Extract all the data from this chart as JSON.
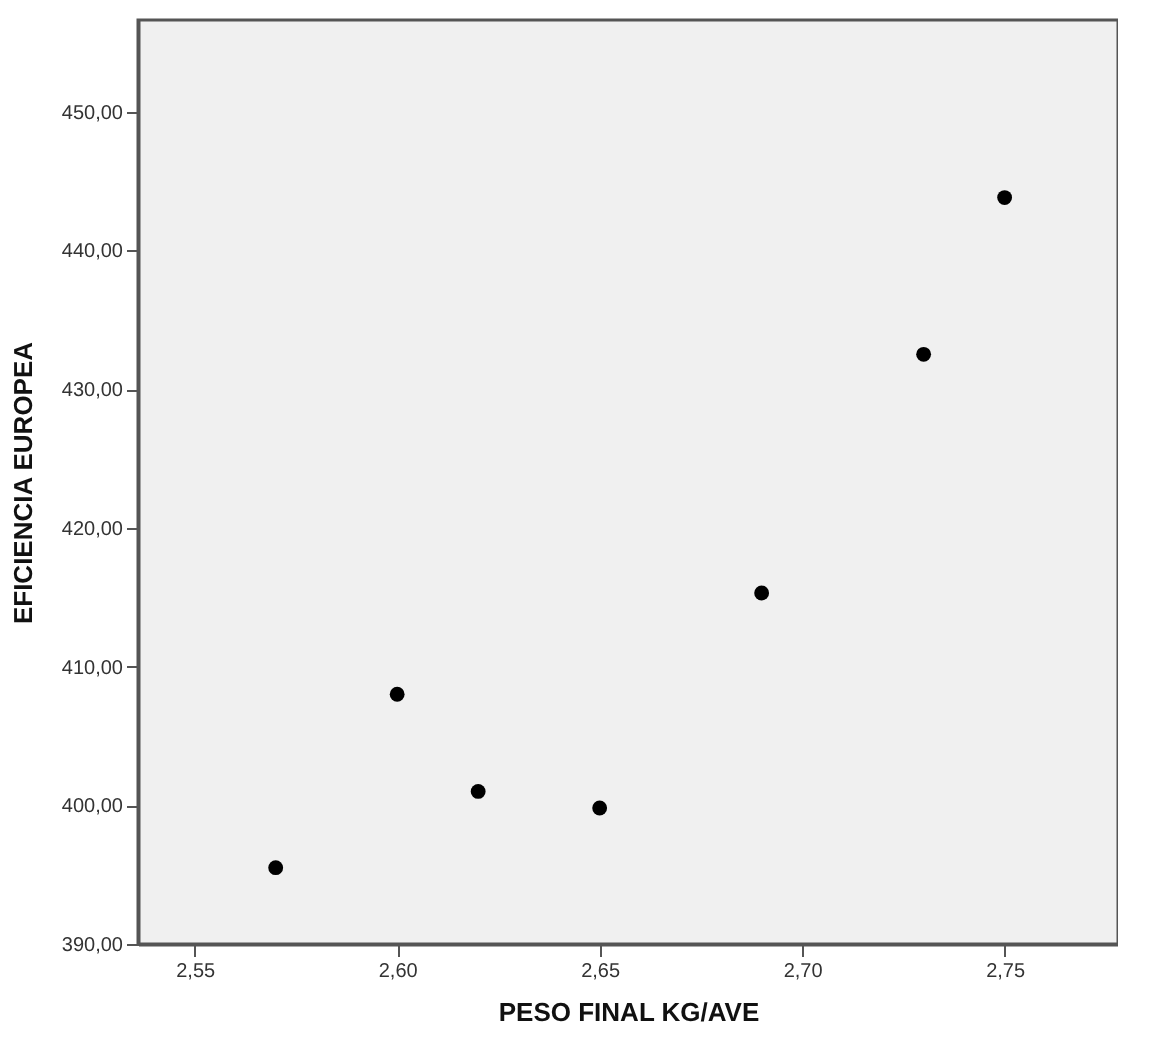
{
  "chart_data": {
    "type": "scatter",
    "xlabel": "PESO FINAL KG/AVE",
    "ylabel": "EFICIENCIA EUROPEA",
    "x": [
      2.57,
      2.6,
      2.62,
      2.65,
      2.69,
      2.73,
      2.75
    ],
    "series": [
      {
        "color": "#000000",
        "values": [
          395.5,
          408.0,
          401.0,
          399.8,
          415.3,
          432.5,
          443.8
        ]
      }
    ],
    "xlim": [
      2.536,
      2.778
    ],
    "ylim": [
      390,
      456.6
    ],
    "xticks": [
      {
        "value": 2.55,
        "label": "2,55"
      },
      {
        "value": 2.6,
        "label": "2,60"
      },
      {
        "value": 2.65,
        "label": "2,65"
      },
      {
        "value": 2.7,
        "label": "2,70"
      },
      {
        "value": 2.75,
        "label": "2,75"
      }
    ],
    "yticks": [
      {
        "value": 390,
        "label": "390,00"
      },
      {
        "value": 400,
        "label": "400,00"
      },
      {
        "value": 410,
        "label": "410,00"
      },
      {
        "value": 420,
        "label": "420,00"
      },
      {
        "value": 430,
        "label": "430,00"
      },
      {
        "value": 440,
        "label": "440,00"
      },
      {
        "value": 450,
        "label": "450,00"
      }
    ],
    "grid": false,
    "marker": "circle"
  }
}
